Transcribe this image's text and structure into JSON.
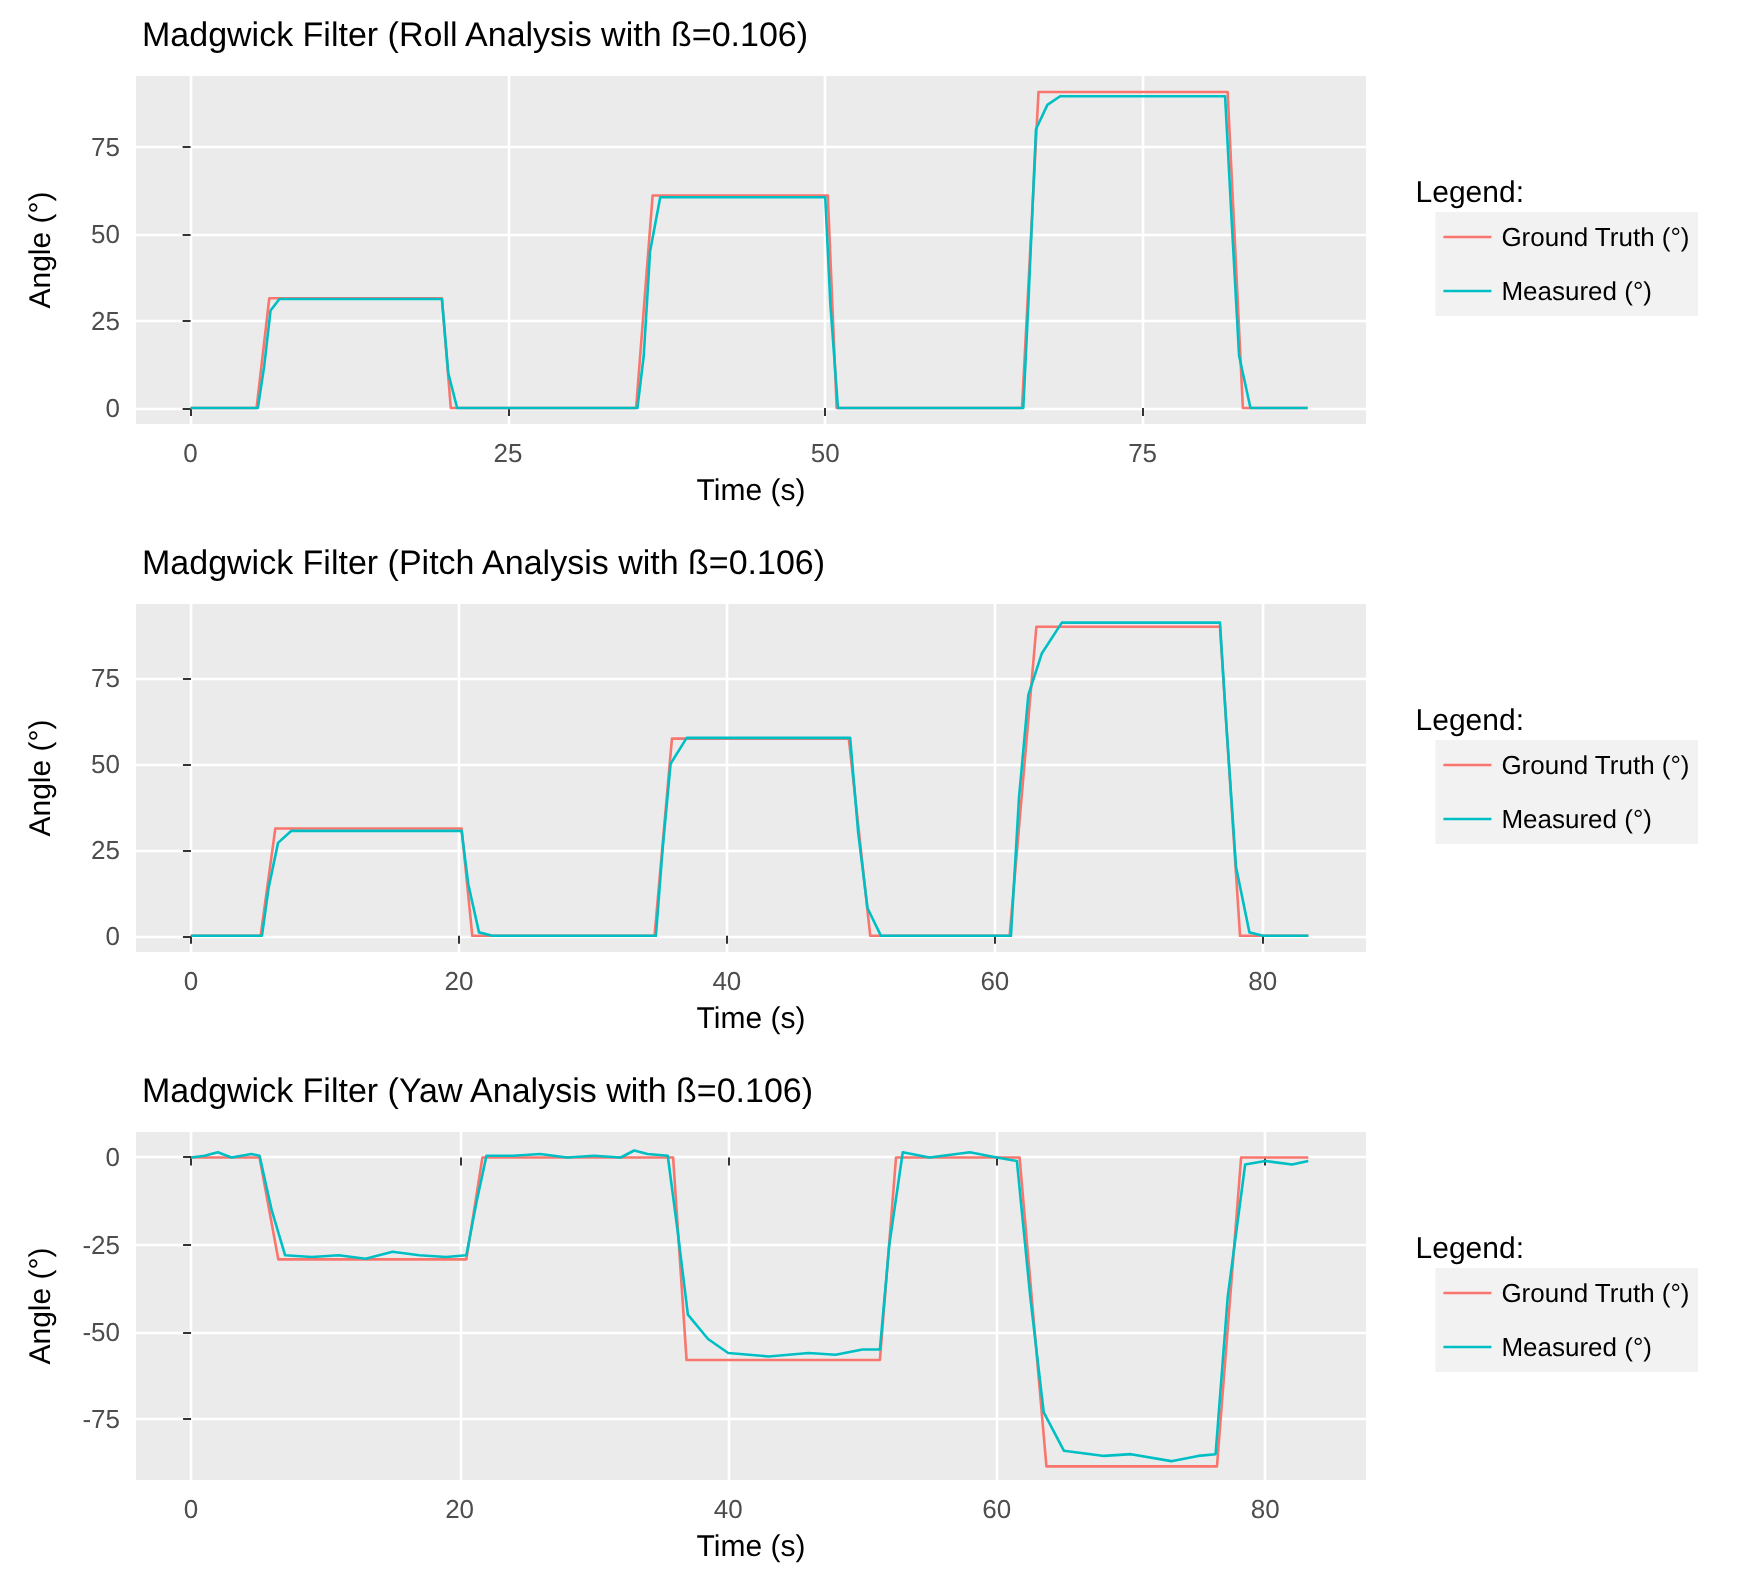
{
  "chart_data": [
    {
      "type": "line",
      "title": "Madgwick Filter (Roll Analysis with ß=0.106)",
      "xlabel": "Time (s)",
      "ylabel": "Angle (°)",
      "legend_title": "Legend:",
      "legend": "right",
      "grid": true,
      "xlim": [
        -4.3,
        92.6
      ],
      "ylim": [
        -4.6,
        95.3
      ],
      "xticks": [
        0,
        25,
        50,
        75
      ],
      "yticks": [
        0,
        25,
        50,
        75
      ],
      "series": [
        {
          "name": "Ground Truth (°)",
          "color": "#f8766d",
          "x": [
            0,
            5.2,
            6.2,
            19.8,
            20.5,
            35.1,
            36.4,
            50.2,
            50.9,
            65.5,
            66.8,
            81.7,
            82.9,
            88
          ],
          "values": [
            0,
            0,
            31.5,
            31.5,
            0,
            0,
            61,
            61,
            0,
            0,
            90.7,
            90.7,
            0,
            0
          ]
        },
        {
          "name": "Measured (°)",
          "color": "#00bfc4",
          "x": [
            0,
            5.3,
            5.8,
            6.3,
            7,
            19.8,
            20.3,
            21,
            35.2,
            35.7,
            36.2,
            37,
            50,
            50.4,
            51,
            65.6,
            66,
            66.6,
            67.5,
            68.5,
            81.5,
            82,
            82.6,
            83.5,
            88
          ],
          "values": [
            0,
            0,
            12,
            28,
            31.3,
            31.3,
            10,
            0,
            0,
            15,
            45,
            60.5,
            60.5,
            30,
            0,
            0,
            30,
            80,
            87,
            89.5,
            89.5,
            55,
            15,
            0,
            0
          ]
        }
      ]
    },
    {
      "type": "line",
      "title": "Madgwick Filter (Pitch Analysis with ß=0.106)",
      "xlabel": "Time (s)",
      "ylabel": "Angle (°)",
      "legend_title": "Legend:",
      "legend": "right",
      "grid": true,
      "xlim": [
        -4.1,
        87.7
      ],
      "ylim": [
        -4.7,
        96.4
      ],
      "xticks": [
        0,
        20,
        40,
        60,
        80
      ],
      "yticks": [
        0,
        25,
        50,
        75
      ],
      "series": [
        {
          "name": "Ground Truth (°)",
          "color": "#f8766d",
          "x": [
            0,
            5.2,
            6.3,
            20.2,
            21,
            34.6,
            35.9,
            49.1,
            50.7,
            61.1,
            63.1,
            76.8,
            78.3,
            83.4
          ],
          "values": [
            0,
            0,
            31.2,
            31.2,
            0,
            0,
            57.3,
            57.3,
            0,
            0,
            89.8,
            89.8,
            0,
            0
          ]
        },
        {
          "name": "Measured (°)",
          "color": "#00bfc4",
          "x": [
            0,
            5.3,
            5.8,
            6.5,
            7.5,
            20.2,
            20.7,
            21.5,
            22.5,
            34.7,
            35.2,
            35.8,
            37,
            49.2,
            49.8,
            50.5,
            51.5,
            61.2,
            61.8,
            62.5,
            63.5,
            65,
            76.8,
            77.3,
            78,
            79,
            80,
            83.4
          ],
          "values": [
            0,
            0,
            14,
            27,
            30.5,
            30.5,
            15,
            1,
            0,
            0,
            25,
            50,
            57.5,
            57.5,
            30,
            8,
            0,
            0,
            40,
            70,
            82,
            91,
            91,
            60,
            20,
            1,
            0,
            0
          ]
        }
      ]
    },
    {
      "type": "line",
      "title": "Madgwick Filter (Yaw Analysis with ß=0.106)",
      "xlabel": "Time (s)",
      "ylabel": "Angle (°)",
      "legend_title": "Legend:",
      "legend": "right",
      "grid": true,
      "xlim": [
        -4.1,
        87.5
      ],
      "ylim": [
        -92.4,
        7.3
      ],
      "xticks": [
        0,
        20,
        40,
        60,
        80
      ],
      "yticks": [
        -75,
        -50,
        -25,
        0
      ],
      "series": [
        {
          "name": "Ground Truth (°)",
          "color": "#f8766d",
          "x": [
            0,
            5.1,
            6.5,
            20.5,
            21.7,
            35.9,
            36.9,
            51.3,
            52.5,
            61.7,
            63.7,
            76.4,
            78.2,
            83.2
          ],
          "values": [
            0,
            0,
            -29.2,
            -29.2,
            0,
            0,
            -58,
            -58,
            0,
            0,
            -88.5,
            -88.5,
            0,
            0
          ]
        },
        {
          "name": "Measured (°)",
          "color": "#00bfc4",
          "x": [
            0,
            1,
            2,
            3,
            4.5,
            5.1,
            6,
            7,
            9,
            11,
            13,
            15,
            17,
            19,
            20.5,
            21.3,
            22,
            24,
            26,
            28,
            30,
            32,
            33,
            34,
            35.5,
            36.2,
            37,
            38.5,
            40,
            43,
            46,
            48,
            50,
            51.3,
            52,
            53,
            55,
            58,
            60,
            61.5,
            62.5,
            63.5,
            65,
            68,
            70,
            73,
            75,
            76.3,
            77.2,
            78.5,
            80,
            82,
            83.2
          ],
          "values": [
            0,
            0.5,
            1.5,
            0,
            1,
            0.5,
            -15,
            -28,
            -28.5,
            -28,
            -29,
            -27,
            -28,
            -28.5,
            -28,
            -12,
            0.5,
            0.5,
            1,
            0,
            0.5,
            0,
            2,
            1,
            0.5,
            -20,
            -45,
            -52,
            -56,
            -57,
            -56,
            -56.5,
            -55,
            -55,
            -25,
            1.5,
            0,
            1.5,
            0,
            -1,
            -40,
            -73,
            -84,
            -85.5,
            -85,
            -87,
            -85.5,
            -85,
            -40,
            -2,
            -1,
            -2,
            -1
          ]
        }
      ]
    }
  ]
}
